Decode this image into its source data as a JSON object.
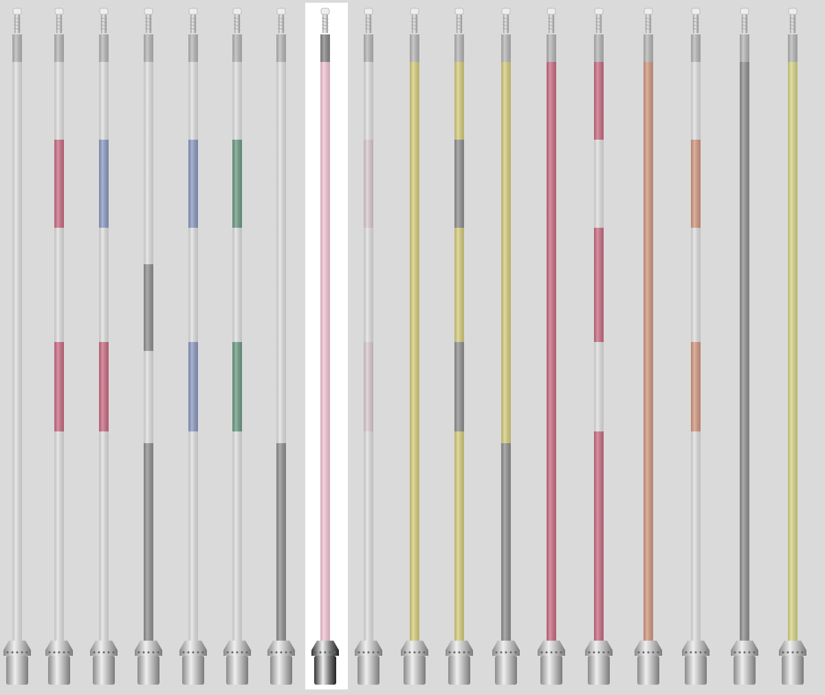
{
  "poles": [
    {
      "colors": [
        "#e2e2e2"
      ]
    },
    {
      "colors": [
        "#e2e2e2",
        "#cc6e85",
        "#e2e2e2",
        "#cc6e85",
        "#e2e2e2"
      ]
    },
    {
      "colors": [
        "#e2e2e2",
        "#8e9cc4",
        "#e2e2e2",
        "#cc6e85",
        "#e2e2e2"
      ]
    },
    {
      "colors": [
        "#e2e2e2",
        "#929292",
        "#e2e2e2",
        "#929292"
      ]
    },
    {
      "colors": [
        "#e2e2e2",
        "#8e9cc4",
        "#e2e2e2",
        "#8e9cc4",
        "#e2e2e2"
      ]
    },
    {
      "colors": [
        "#e2e2e2",
        "#6e9e86",
        "#e2e2e2",
        "#6e9e86",
        "#e2e2e2"
      ]
    },
    {
      "colors": [
        "#e2e2e2",
        "#929292"
      ]
    },
    {
      "colors": [
        "#f5c8d6"
      ],
      "selected": true
    },
    {
      "colors": [
        "#e2e2e2",
        "#dccdd2",
        "#e2e2e2",
        "#dccdd2",
        "#e2e2e2"
      ]
    },
    {
      "colors": [
        "#d8cf80"
      ]
    },
    {
      "colors": [
        "#d8cf80",
        "#929292",
        "#d8cf80",
        "#929292",
        "#d8cf80"
      ]
    },
    {
      "colors": [
        "#d8cf80",
        "#929292"
      ]
    },
    {
      "colors": [
        "#cc6e85"
      ]
    },
    {
      "colors": [
        "#cc6e85",
        "#e2e2e2",
        "#cc6e85",
        "#e2e2e2",
        "#cc6e85"
      ]
    },
    {
      "colors": [
        "#d49a82"
      ]
    },
    {
      "colors": [
        "#e2e2e2",
        "#d49a82",
        "#e2e2e2",
        "#d49a82",
        "#e2e2e2"
      ]
    },
    {
      "colors": [
        "#929292"
      ]
    },
    {
      "colors": [
        "#d8d888"
      ]
    }
  ]
}
